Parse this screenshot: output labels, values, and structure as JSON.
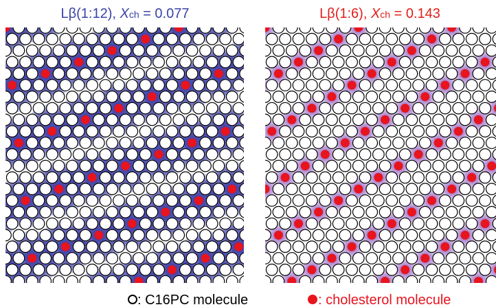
{
  "panels": [
    {
      "title": {
        "prefix": "Lβ(1:12), ",
        "var": "X",
        "sub": "ch",
        "suffix": " = 0.077"
      }
    },
    {
      "title": {
        "prefix": "Lβ(1:6), ",
        "var": "X",
        "sub": "ch",
        "suffix": " = 0.143"
      }
    }
  ],
  "legend": [
    {
      "label": ": C16PC molecule"
    },
    {
      "label": ": cholesterol molecule"
    }
  ]
}
